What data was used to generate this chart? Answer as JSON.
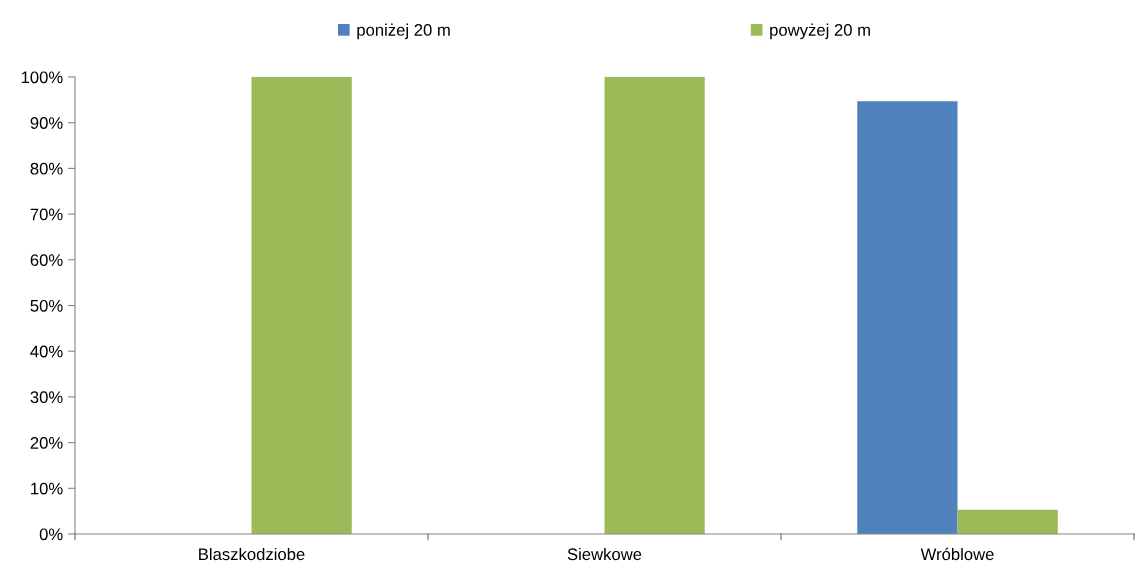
{
  "chart_data": {
    "type": "bar",
    "categories": [
      "Blaszkodziobe",
      "Siewkowe",
      "Wróblowe"
    ],
    "series": [
      {
        "name": "poniżej 20 m",
        "color": "#4f81bd",
        "values": [
          0,
          0,
          94.7
        ]
      },
      {
        "name": "powyżej 20 m",
        "color": "#9bbb59",
        "values": [
          100,
          100,
          5.3
        ]
      }
    ],
    "ylim": [
      0,
      100
    ],
    "yticks": [
      {
        "value": 0,
        "label": "0%"
      },
      {
        "value": 10,
        "label": "10%"
      },
      {
        "value": 20,
        "label": "20%"
      },
      {
        "value": 30,
        "label": "30%"
      },
      {
        "value": 40,
        "label": "40%"
      },
      {
        "value": 50,
        "label": "50%"
      },
      {
        "value": 60,
        "label": "60%"
      },
      {
        "value": 70,
        "label": "70%"
      },
      {
        "value": 80,
        "label": "80%"
      },
      {
        "value": 90,
        "label": "90%"
      },
      {
        "value": 100,
        "label": "100%"
      }
    ],
    "grid": false,
    "legend": "top"
  }
}
